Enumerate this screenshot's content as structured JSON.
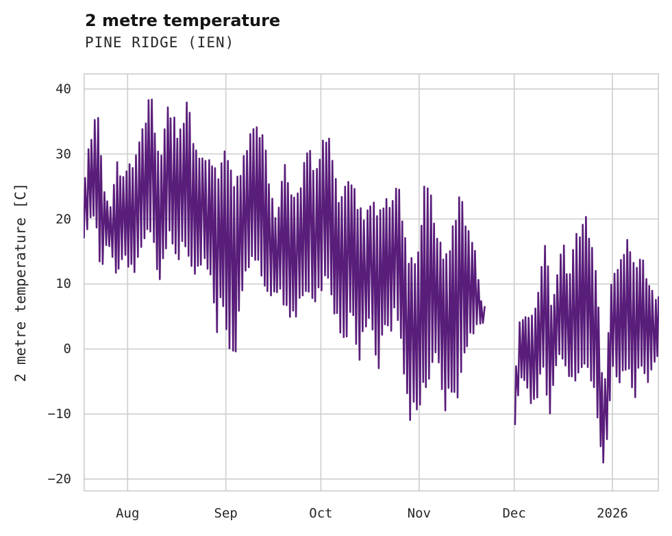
{
  "page": {
    "title": "2 metre temperature",
    "subtitle": "PINE RIDGE (IEN)"
  },
  "chart_data": {
    "type": "line",
    "title": "2 metre temperature",
    "subtitle": "PINE RIDGE (IEN)",
    "xlabel": "",
    "ylabel": "2 metre temperature [C]",
    "unit": "C",
    "legend": "none",
    "grid": true,
    "background": "#ffffff",
    "line_color": "#591d7a",
    "grid_color": "#cdcdcd",
    "text_color": "#262626",
    "title_color": "#141414",
    "ylim": [
      -21.9,
      42.4
    ],
    "x_domain_days": {
      "start": 0.1,
      "end": 181.7,
      "day0_date": "2025-07-18"
    },
    "yticks": [
      {
        "v": 40,
        "label": "40"
      },
      {
        "v": 30,
        "label": "30"
      },
      {
        "v": 20,
        "label": "20"
      },
      {
        "v": 10,
        "label": "10"
      },
      {
        "v": 0,
        "label": "0"
      },
      {
        "v": -10,
        "label": "−10"
      },
      {
        "v": -20,
        "label": "−20"
      }
    ],
    "xticks": [
      {
        "d": 14,
        "label": "Aug"
      },
      {
        "d": 45,
        "label": "Sep"
      },
      {
        "d": 75,
        "label": "Oct"
      },
      {
        "d": 106,
        "label": "Nov"
      },
      {
        "d": 136,
        "label": "Dec"
      },
      {
        "d": 167,
        "label": "2026"
      }
    ],
    "data_gap": {
      "from_day": 126,
      "to_day": 136,
      "note": "no data ~Nov 21 to Dec 1"
    },
    "segments": [
      {
        "name": "pre-gap",
        "daily_envelope": [
          [
            0,
            24,
            16.5
          ],
          [
            1,
            30,
            18
          ],
          [
            3,
            34,
            20
          ],
          [
            4,
            37.4,
            21
          ],
          [
            5,
            33,
            15
          ],
          [
            6,
            25,
            11.1
          ],
          [
            7,
            23,
            16
          ],
          [
            9,
            22,
            15.5
          ],
          [
            10,
            30.2,
            12
          ],
          [
            11,
            27,
            11.2
          ],
          [
            12,
            26,
            14
          ],
          [
            14,
            28.5,
            13
          ],
          [
            16,
            29,
            11
          ],
          [
            18,
            33,
            15
          ],
          [
            21,
            40,
            19
          ],
          [
            23,
            32,
            14
          ],
          [
            24,
            28,
            9.5
          ],
          [
            26,
            37.5,
            15
          ],
          [
            28,
            36.5,
            17
          ],
          [
            30,
            33,
            13
          ],
          [
            32,
            38.1,
            16
          ],
          [
            33,
            37.8,
            15
          ],
          [
            35,
            31,
            11
          ],
          [
            37,
            29.5,
            13
          ],
          [
            39,
            29,
            12.5
          ],
          [
            41,
            29.8,
            11
          ],
          [
            42,
            25,
            1
          ],
          [
            44,
            31.2,
            8
          ],
          [
            46,
            28,
            0.5
          ],
          [
            48,
            26,
            -2.8
          ],
          [
            50,
            29,
            8
          ],
          [
            52,
            33,
            12
          ],
          [
            54,
            34.3,
            14
          ],
          [
            56,
            33.5,
            12
          ],
          [
            57,
            32.2,
            10
          ],
          [
            59,
            24,
            8
          ],
          [
            61,
            20,
            9
          ],
          [
            63,
            29.5,
            7
          ],
          [
            65,
            24,
            5
          ],
          [
            67,
            23,
            4
          ],
          [
            69,
            28,
            8
          ],
          [
            71,
            31.5,
            9
          ],
          [
            73,
            27,
            7
          ],
          [
            75,
            31.7,
            8
          ],
          [
            77,
            33.8,
            12
          ],
          [
            79,
            27,
            6
          ],
          [
            81,
            23,
            3
          ],
          [
            83,
            26,
            0.6
          ],
          [
            85,
            25.5,
            7
          ],
          [
            87,
            22,
            -2.9
          ],
          [
            89,
            21,
            3
          ],
          [
            91,
            23,
            5
          ],
          [
            93,
            21,
            -5
          ],
          [
            95,
            23.4,
            4
          ],
          [
            97,
            22,
            2
          ],
          [
            99,
            26.2,
            6
          ],
          [
            101,
            18,
            -2
          ],
          [
            103,
            14,
            -11.7
          ],
          [
            105,
            15,
            -8
          ],
          [
            106,
            15,
            -11.3
          ],
          [
            107,
            25,
            -5
          ],
          [
            109,
            26.3,
            -6.4
          ],
          [
            110,
            20,
            -2.5
          ],
          [
            112,
            17,
            0
          ],
          [
            114,
            14,
            -10.4
          ],
          [
            116,
            18,
            -6
          ],
          [
            118,
            23.4,
            -9.6
          ],
          [
            119,
            24,
            -4.6
          ],
          [
            121,
            18.5,
            0
          ],
          [
            123,
            17,
            2
          ],
          [
            125,
            8,
            3.8
          ],
          [
            126,
            6.5,
            4
          ]
        ]
      },
      {
        "name": "post-gap",
        "daily_envelope": [
          [
            136,
            -7,
            -14
          ],
          [
            137,
            4,
            -8
          ],
          [
            139,
            5,
            -4
          ],
          [
            141,
            4.8,
            -8.2
          ],
          [
            143,
            7.3,
            -8.9
          ],
          [
            145,
            15,
            -2
          ],
          [
            146,
            17.3,
            -4
          ],
          [
            147,
            6,
            -11.7
          ],
          [
            149,
            10,
            -3
          ],
          [
            151,
            17.6,
            -1
          ],
          [
            153,
            10,
            -4
          ],
          [
            155,
            17.8,
            -5.4
          ],
          [
            157,
            18,
            -3.3
          ],
          [
            158,
            21.2,
            -2
          ],
          [
            160,
            17,
            -4
          ],
          [
            162,
            10,
            -8.5
          ],
          [
            164,
            -8,
            -18.9
          ],
          [
            166,
            9.1,
            -12
          ],
          [
            167,
            11.3,
            -2
          ],
          [
            169,
            13,
            -5.7
          ],
          [
            171,
            17.5,
            -3
          ],
          [
            173,
            14.4,
            -4
          ],
          [
            174,
            12,
            -8.9
          ],
          [
            176,
            14.7,
            -2
          ],
          [
            178,
            10,
            -5.7
          ],
          [
            181,
            8,
            -1.2
          ]
        ]
      }
    ]
  }
}
